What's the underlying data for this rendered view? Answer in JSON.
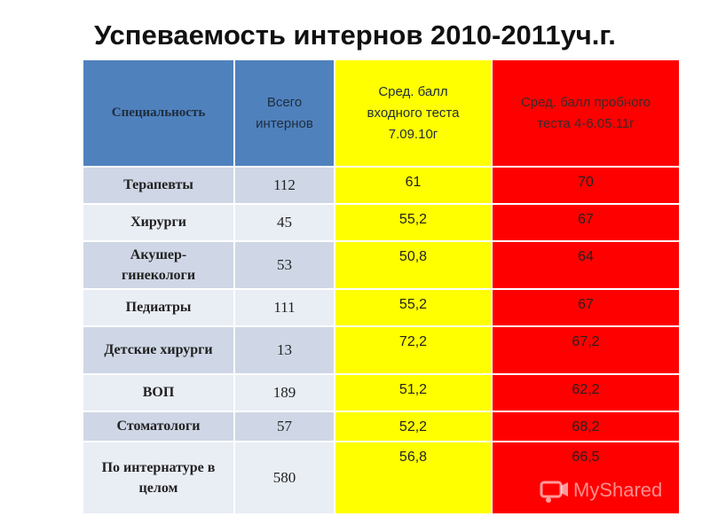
{
  "title": "Успеваемость интернов 2010-2011уч.г.",
  "table": {
    "headers": [
      "Специальность",
      "Всего интернов",
      "Сред. балл входного теста 7.09.10г",
      "Сред. балл пробного теста 4-6.05.11г"
    ],
    "rows": [
      {
        "specialty": "Терапевты",
        "total": "112",
        "entry": "61",
        "trial": "70"
      },
      {
        "specialty": "Хирурги",
        "total": "45",
        "entry": "55,2",
        "trial": "67"
      },
      {
        "specialty": "Акушер-гинекологи",
        "total": "53",
        "entry": "50,8",
        "trial": "64"
      },
      {
        "specialty": "Педиатры",
        "total": "111",
        "entry": "55,2",
        "trial": "67"
      },
      {
        "specialty": "Детские хирурги",
        "total": "13",
        "entry": "72,2",
        "trial": "67,2"
      },
      {
        "specialty": "ВОП",
        "total": "189",
        "entry": "51,2",
        "trial": "62,2"
      },
      {
        "specialty": "Стоматологи",
        "total": "57",
        "entry": "52,2",
        "trial": "68,2"
      },
      {
        "specialty": "По интернатуре в целом",
        "total": "580",
        "entry": "56,8",
        "trial": "66,5"
      }
    ]
  },
  "colors": {
    "header_blue": "#4f81bd",
    "entry_yellow": "#ffff00",
    "trial_red": "#ff0000",
    "row_dark": "#cfd7e6",
    "row_light": "#e9edf4"
  },
  "watermark": {
    "text": "MyShared",
    "icon": "myshared-logo-icon"
  }
}
